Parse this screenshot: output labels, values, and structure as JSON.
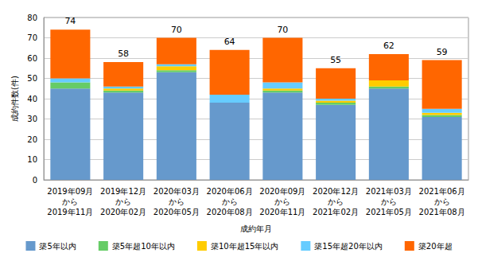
{
  "chart_data": {
    "type": "bar",
    "stacked": true,
    "grid": true,
    "legend": "bottom",
    "x_label": "成約年月",
    "y_label": "成約件数(件)",
    "categories": [
      "2019年09月\nから\n2019年11月",
      "2019年12月\nから\n2020年02月",
      "2020年03月\nから\n2020年05月",
      "2020年06月\nから\n2020年08月",
      "2020年09月\nから\n2020年11月",
      "2020年12月\nから\n2021年02月",
      "2021年03月\nから\n2021年05月",
      "2021年06月\nから\n2021年08月"
    ],
    "series": [
      {
        "name": "築5年以内",
        "color": "#6699cc",
        "values": [
          45,
          43,
          53,
          38,
          43,
          37,
          45,
          31
        ]
      },
      {
        "name": "築5年超10年以内",
        "color": "#66cc66",
        "values": [
          3,
          1,
          1,
          0,
          1,
          1,
          1,
          1
        ]
      },
      {
        "name": "築10年超15年以内",
        "color": "#ffcc00",
        "values": [
          0,
          1,
          2,
          0,
          1,
          1,
          3,
          1
        ]
      },
      {
        "name": "築15年超20年以内",
        "color": "#66ccff",
        "values": [
          2,
          1,
          1,
          4,
          3,
          1,
          0,
          2
        ]
      },
      {
        "name": "築20年超",
        "color": "#ff6600",
        "values": [
          24,
          12,
          13,
          22,
          22,
          15,
          13,
          24
        ]
      }
    ],
    "totals": [
      74,
      58,
      70,
      64,
      70,
      55,
      62,
      59
    ],
    "ylim": [
      0,
      80
    ],
    "yticks": [
      0,
      10,
      20,
      30,
      40,
      50,
      60,
      70,
      80
    ]
  }
}
